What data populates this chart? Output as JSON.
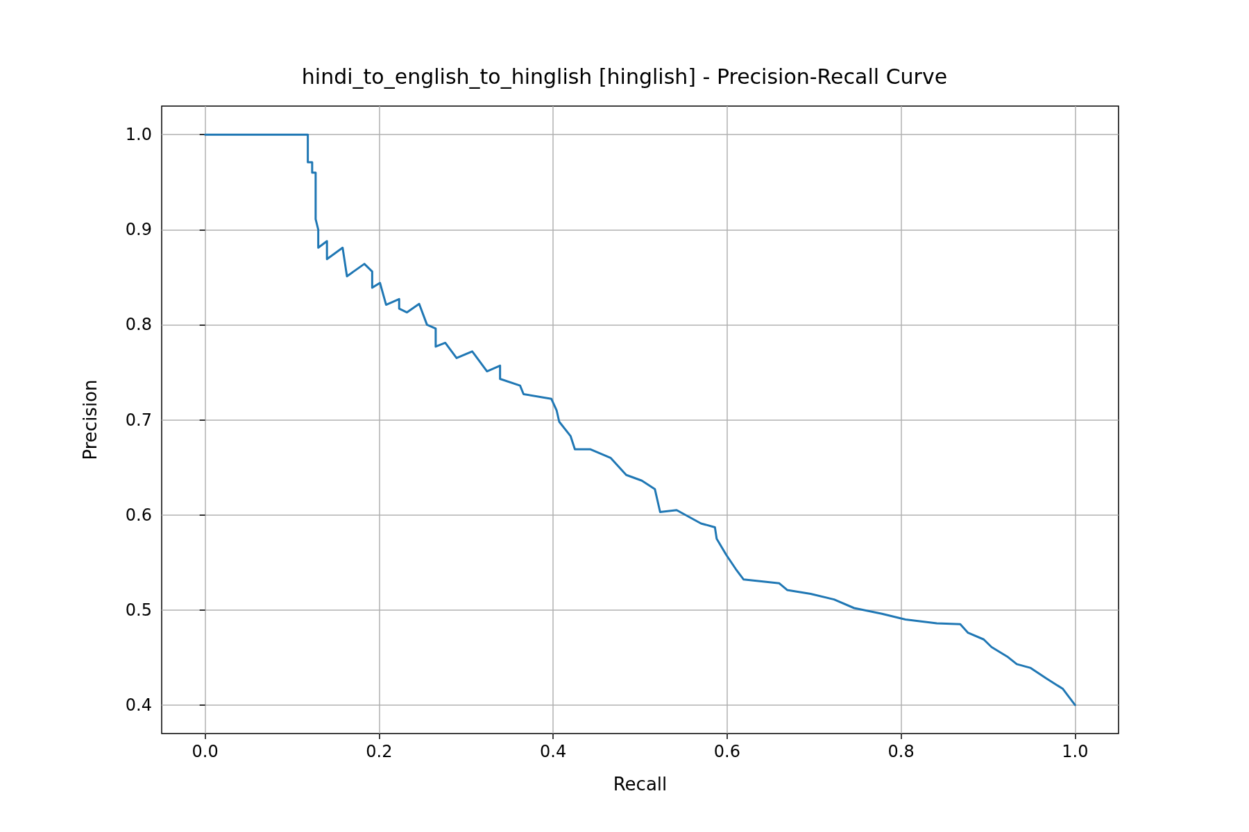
{
  "chart_data": {
    "type": "line",
    "title": "hindi_to_english_to_hinglish [hinglish] - Precision-Recall Curve",
    "xlabel": "Recall",
    "ylabel": "Precision",
    "xlim": [
      -0.05,
      1.05
    ],
    "xticks": [
      {
        "value": 0,
        "label": "0.0"
      },
      {
        "value": 0.2,
        "label": "0.2"
      },
      {
        "value": 0.4,
        "label": "0.4"
      },
      {
        "value": 0.6,
        "label": "0.6"
      },
      {
        "value": 0.8,
        "label": "0.8"
      },
      {
        "value": 1,
        "label": "1.0"
      }
    ],
    "ylim": [
      0.37,
      1.03
    ],
    "yticks": [
      {
        "value": 0.4,
        "label": "0.4"
      },
      {
        "value": 0.5,
        "label": "0.5"
      },
      {
        "value": 0.6,
        "label": "0.6"
      },
      {
        "value": 0.7,
        "label": "0.7"
      },
      {
        "value": 0.8,
        "label": "0.8"
      },
      {
        "value": 0.9,
        "label": "0.9"
      },
      {
        "value": 1,
        "label": "1.0"
      }
    ],
    "grid": true,
    "marker": "none",
    "line_style": "solid",
    "series": [
      {
        "color": "#1f77b4",
        "x": [
          0,
          0.118,
          0.118,
          0.123,
          0.123,
          0.127,
          0.127,
          0.13,
          0.13,
          0.14,
          0.14,
          0.158,
          0.163,
          0.183,
          0.192,
          0.192,
          0.201,
          0.208,
          0.223,
          0.223,
          0.232,
          0.246,
          0.255,
          0.265,
          0.265,
          0.276,
          0.289,
          0.307,
          0.324,
          0.339,
          0.339,
          0.362,
          0.366,
          0.398,
          0.404,
          0.407,
          0.42,
          0.425,
          0.443,
          0.466,
          0.484,
          0.502,
          0.517,
          0.523,
          0.542,
          0.57,
          0.586,
          0.588,
          0.599,
          0.61,
          0.619,
          0.66,
          0.669,
          0.696,
          0.723,
          0.746,
          0.778,
          0.805,
          0.841,
          0.868,
          0.877,
          0.895,
          0.904,
          0.922,
          0.933,
          0.949,
          0.967,
          0.986,
          1.0
        ],
        "values": [
          1.0,
          1.0,
          0.971,
          0.971,
          0.96,
          0.96,
          0.911,
          0.9,
          0.881,
          0.888,
          0.869,
          0.881,
          0.851,
          0.864,
          0.856,
          0.839,
          0.844,
          0.821,
          0.827,
          0.817,
          0.813,
          0.822,
          0.8,
          0.796,
          0.777,
          0.781,
          0.765,
          0.772,
          0.751,
          0.757,
          0.743,
          0.736,
          0.727,
          0.722,
          0.71,
          0.698,
          0.683,
          0.669,
          0.669,
          0.66,
          0.642,
          0.636,
          0.627,
          0.603,
          0.605,
          0.591,
          0.587,
          0.575,
          0.558,
          0.543,
          0.532,
          0.528,
          0.521,
          0.517,
          0.511,
          0.502,
          0.496,
          0.49,
          0.486,
          0.485,
          0.476,
          0.469,
          0.461,
          0.451,
          0.443,
          0.439,
          0.428,
          0.417,
          0.4
        ]
      }
    ]
  }
}
